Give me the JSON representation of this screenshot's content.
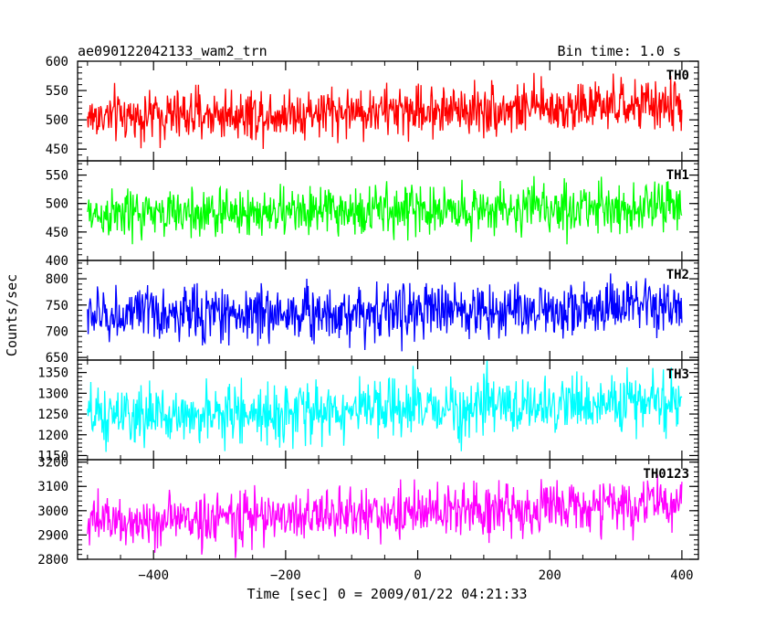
{
  "header": {
    "title": "ae090122042133_wam2_trn",
    "bin_time": "Bin time: 1.0 s"
  },
  "chart_data": {
    "type": "line",
    "title": "ae090122042133_wam2_trn",
    "subtitle": "Bin time: 1.0 s",
    "xlabel": "Time [sec] 0 = 2009/01/22 04:21:33",
    "ylabel": "Counts/sec",
    "xlim": [
      -515,
      425
    ],
    "data_range": [
      -500,
      400
    ],
    "x_ticks": [
      -400,
      -200,
      0,
      200,
      400
    ],
    "x_tick_labels": [
      "−400",
      "−200",
      "0",
      "200",
      "400"
    ],
    "grid": false,
    "panels": [
      {
        "name": "TH0",
        "color": "#ff0000",
        "ylim": [
          430,
          600
        ],
        "y_ticks": [
          450,
          500,
          550,
          600
        ],
        "y_tick_labels": [
          "450",
          "500",
          "550",
          "600"
        ],
        "mean_start": 505,
        "mean_end": 525,
        "spread": 22
      },
      {
        "name": "TH1",
        "color": "#00ff00",
        "ylim": [
          400,
          575
        ],
        "y_ticks": [
          400,
          450,
          500,
          550
        ],
        "y_tick_labels": [
          "400",
          "450",
          "500",
          "550"
        ],
        "mean_start": 480,
        "mean_end": 495,
        "spread": 22
      },
      {
        "name": "TH2",
        "color": "#0000ff",
        "ylim": [
          645,
          835
        ],
        "y_ticks": [
          650,
          700,
          750,
          800
        ],
        "y_tick_labels": [
          "650",
          "700",
          "750",
          "800"
        ],
        "mean_start": 730,
        "mean_end": 745,
        "spread": 27
      },
      {
        "name": "TH3",
        "color": "#00ffff",
        "ylim": [
          1140,
          1380
        ],
        "y_ticks": [
          1150,
          1200,
          1250,
          1300,
          1350
        ],
        "y_tick_labels": [
          "1150",
          "1200",
          "1250",
          "1300",
          "1350"
        ],
        "mean_start": 1240,
        "mean_end": 1280,
        "spread": 35
      },
      {
        "name": "TH0123",
        "color": "#ff00ff",
        "ylim": [
          2800,
          3210
        ],
        "y_ticks": [
          2800,
          2900,
          3000,
          3100,
          3200
        ],
        "y_tick_labels": [
          "2800",
          "2900",
          "3000",
          "3100",
          "3200"
        ],
        "mean_start": 2950,
        "mean_end": 3030,
        "spread": 55
      }
    ]
  }
}
